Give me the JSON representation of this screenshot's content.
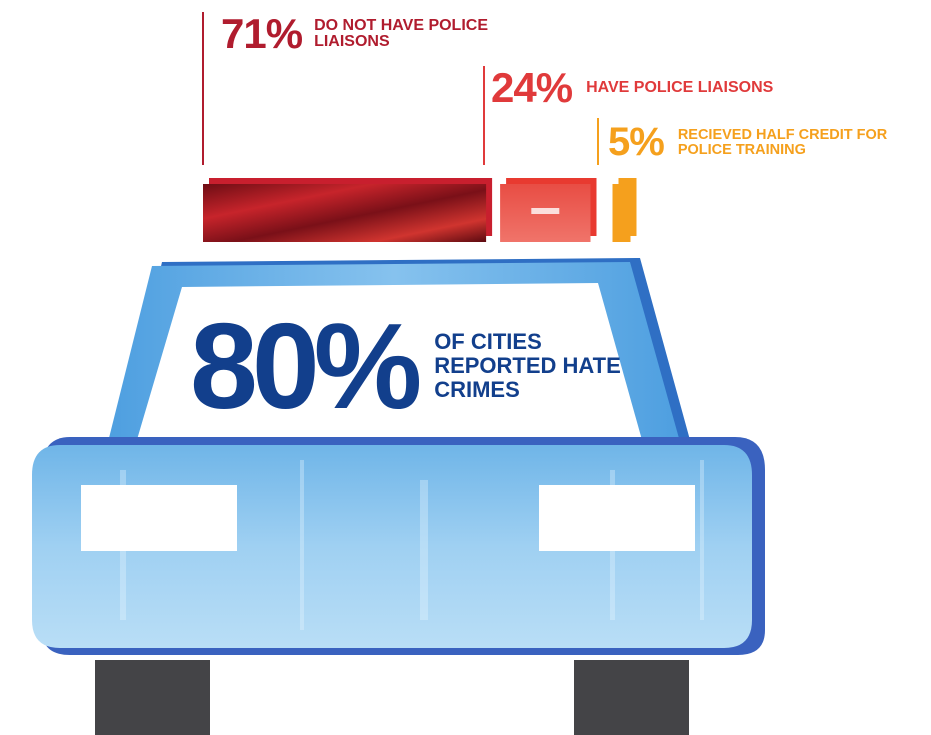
{
  "colors": {
    "red_dark": "#b01c2e",
    "red": "#e03a3b",
    "orange": "#f5a01d",
    "navy": "#123f8c",
    "car_light": "#a8d3f2",
    "car_mid": "#5aa9e2",
    "car_outline": "#2f6fc4",
    "tire": "#444447"
  },
  "chart_data": {
    "type": "bar",
    "categories": [
      "DO NOT HAVE POLICE LIAISONS",
      "HAVE POLICE LIAISONS",
      "RECIEVED HALF CREDIT FOR POLICE TRAINING"
    ],
    "values": [
      71,
      24,
      5
    ],
    "unit": "%",
    "orientation": "horizontal-stacked",
    "bar_colors": [
      "#b01c2e",
      "#e03a3b",
      "#f5a01d"
    ]
  },
  "stats": [
    {
      "pct": "71%",
      "label": "DO NOT HAVE POLICE LIAISONS"
    },
    {
      "pct": "24%",
      "label": "HAVE POLICE LIAISONS"
    },
    {
      "pct": "5%",
      "label": "RECIEVED HALF CREDIT FOR POLICE TRAINING"
    }
  ],
  "headline": {
    "pct": "80%",
    "label": "OF CITIES REPORTED HATE CRIMES"
  }
}
